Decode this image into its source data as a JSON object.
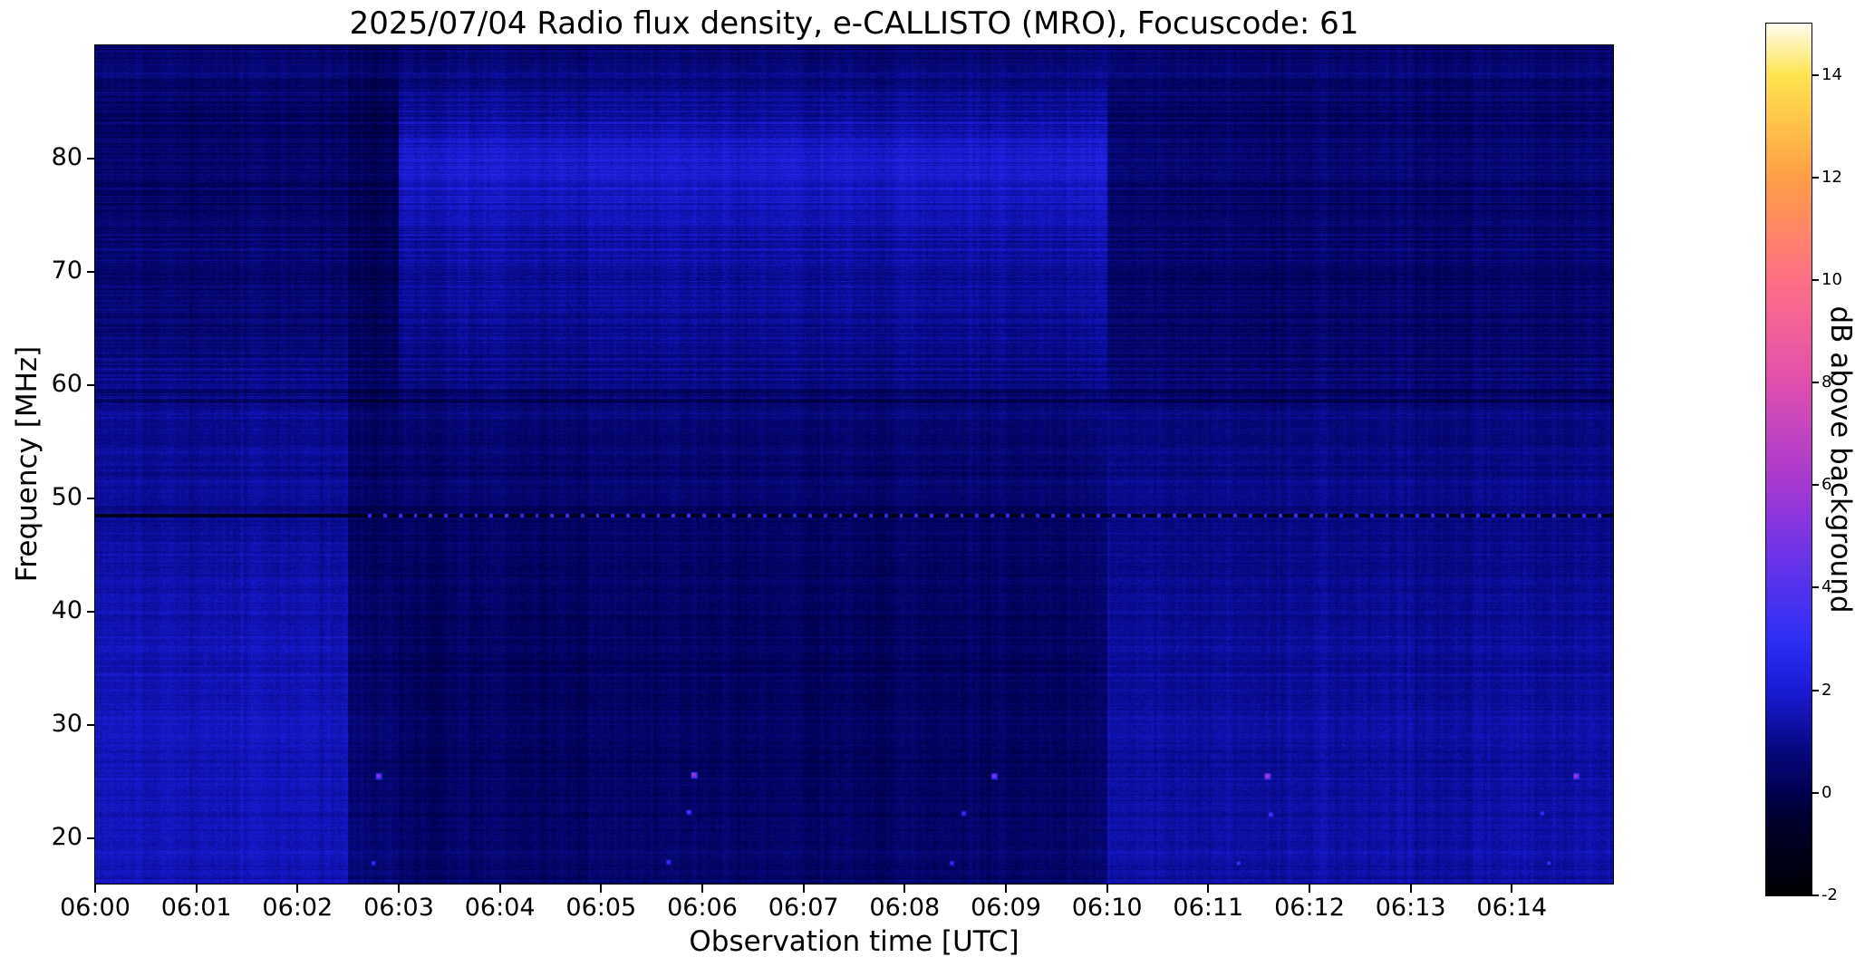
{
  "chart_data": {
    "type": "heatmap",
    "title": "2025/07/04  Radio flux density, e-CALLISTO (MRO), Focuscode: 61",
    "xlabel": "Observation time [UTC]",
    "ylabel": "Frequency [MHz]",
    "date": "2025/07/04",
    "instrument": "e-CALLISTO (MRO)",
    "focuscode": "61",
    "x_ticks": [
      "06:00",
      "06:01",
      "06:02",
      "06:03",
      "06:04",
      "06:05",
      "06:06",
      "06:07",
      "06:08",
      "06:09",
      "06:10",
      "06:11",
      "06:12",
      "06:13",
      "06:14"
    ],
    "y_ticks": [
      20,
      30,
      40,
      50,
      60,
      70,
      80
    ],
    "time_range_seconds": [
      0,
      900
    ],
    "freq_range_mhz": [
      16,
      90
    ],
    "legend_position": "right-colorbar",
    "grid_on": false,
    "colorbar": {
      "label": "dB above background",
      "ticks": [
        -2,
        0,
        2,
        4,
        6,
        8,
        10,
        12,
        14
      ],
      "range": [
        -2,
        15
      ],
      "colormap_stops": [
        {
          "v": -2,
          "c": "#000002"
        },
        {
          "v": -0.5,
          "c": "#000030"
        },
        {
          "v": 0,
          "c": "#00004e"
        },
        {
          "v": 1,
          "c": "#0a0a8c"
        },
        {
          "v": 2,
          "c": "#1b1bd6"
        },
        {
          "v": 3,
          "c": "#2e2ef5"
        },
        {
          "v": 4,
          "c": "#5332ee"
        },
        {
          "v": 5,
          "c": "#7c35e4"
        },
        {
          "v": 6,
          "c": "#a438d2"
        },
        {
          "v": 8,
          "c": "#e04fae"
        },
        {
          "v": 10,
          "c": "#ff6f85"
        },
        {
          "v": 12,
          "c": "#ff9e45"
        },
        {
          "v": 14,
          "c": "#ffe44f"
        },
        {
          "v": 15,
          "c": "#fdfdf0"
        }
      ]
    },
    "grid": {
      "time_bin_seconds": 30,
      "n_time_bins": 30,
      "n_freq_bins": 19,
      "freq_bins_order": "rows top to bottom, 90 MHz down to 16 MHz",
      "values_db": [
        [
          0.4,
          0.4,
          0.4,
          0.4,
          0.4,
          0.1,
          0.5,
          0.5,
          0.5,
          0.5,
          0.5,
          0.5,
          0.5,
          0.5,
          0.5,
          0.5,
          0.5,
          0.5,
          0.5,
          0.5,
          0.4,
          0.4,
          0.4,
          0.4,
          0.4,
          0.4,
          0.4,
          0.4,
          0.4,
          0.4
        ],
        [
          0.3,
          0.3,
          0.3,
          0.3,
          0.3,
          0.0,
          1.2,
          1.2,
          1.2,
          1.2,
          1.2,
          1.2,
          1.2,
          1.2,
          1.2,
          1.2,
          1.2,
          1.2,
          1.2,
          1.2,
          0.4,
          0.4,
          0.4,
          0.4,
          0.4,
          0.4,
          0.4,
          0.4,
          0.4,
          0.4
        ],
        [
          0.3,
          0.3,
          0.3,
          0.3,
          0.3,
          0.0,
          1.9,
          1.9,
          1.9,
          1.9,
          1.9,
          1.9,
          1.9,
          1.9,
          1.9,
          1.9,
          1.9,
          1.9,
          1.9,
          1.9,
          0.5,
          0.5,
          0.5,
          0.5,
          0.5,
          0.5,
          0.5,
          0.5,
          0.5,
          0.5
        ],
        [
          0.4,
          0.4,
          0.4,
          0.4,
          0.4,
          0.1,
          1.8,
          1.8,
          1.8,
          1.8,
          1.8,
          1.8,
          1.8,
          1.8,
          1.8,
          1.8,
          1.8,
          1.8,
          1.8,
          1.8,
          0.5,
          0.5,
          0.5,
          0.5,
          0.5,
          0.5,
          0.5,
          0.5,
          0.5,
          0.5
        ],
        [
          0.5,
          0.5,
          0.5,
          0.5,
          0.5,
          0.1,
          1.3,
          1.3,
          1.3,
          1.3,
          1.3,
          1.3,
          1.3,
          1.3,
          1.3,
          1.3,
          1.3,
          1.3,
          1.3,
          1.3,
          0.5,
          0.5,
          0.5,
          0.5,
          0.5,
          0.5,
          0.5,
          0.5,
          0.5,
          0.5
        ],
        [
          0.5,
          0.5,
          0.5,
          0.5,
          0.5,
          0.1,
          1.2,
          1.2,
          1.2,
          1.2,
          1.2,
          1.2,
          1.2,
          1.2,
          1.2,
          1.2,
          1.2,
          1.2,
          1.2,
          1.2,
          0.4,
          0.4,
          0.4,
          0.4,
          0.4,
          0.4,
          0.4,
          0.4,
          0.4,
          0.4
        ],
        [
          0.6,
          0.6,
          0.6,
          0.6,
          0.6,
          0.2,
          1.1,
          1.1,
          1.1,
          1.1,
          1.1,
          1.1,
          1.1,
          1.1,
          1.1,
          1.1,
          1.1,
          1.1,
          1.1,
          1.1,
          0.5,
          0.5,
          0.5,
          0.5,
          0.5,
          0.5,
          0.5,
          0.5,
          0.5,
          0.5
        ],
        [
          0.8,
          0.8,
          0.8,
          0.8,
          0.8,
          0.2,
          0.8,
          0.8,
          0.8,
          0.8,
          0.8,
          0.8,
          0.8,
          0.8,
          0.8,
          0.8,
          0.8,
          0.8,
          0.8,
          0.8,
          0.5,
          0.5,
          0.5,
          0.5,
          0.5,
          0.5,
          0.5,
          0.5,
          0.5,
          0.5
        ],
        [
          1.0,
          1.0,
          1.0,
          1.0,
          1.0,
          0.3,
          0.6,
          0.6,
          0.6,
          0.6,
          0.6,
          0.6,
          0.6,
          0.6,
          0.6,
          0.6,
          0.6,
          0.6,
          0.6,
          0.6,
          0.8,
          0.8,
          0.8,
          0.8,
          0.8,
          0.8,
          0.8,
          0.8,
          0.8,
          0.8
        ],
        [
          1.1,
          1.1,
          1.1,
          1.1,
          1.1,
          0.3,
          0.5,
          0.5,
          0.5,
          0.5,
          0.5,
          0.5,
          0.5,
          0.5,
          0.5,
          0.5,
          0.5,
          0.5,
          0.5,
          0.5,
          0.9,
          0.9,
          0.9,
          0.9,
          0.9,
          0.9,
          0.9,
          0.9,
          0.9,
          0.9
        ],
        [
          1.0,
          1.0,
          1.0,
          1.0,
          1.0,
          0.2,
          0.4,
          0.4,
          0.4,
          0.4,
          0.4,
          0.4,
          0.4,
          0.4,
          0.4,
          0.4,
          0.4,
          0.4,
          0.4,
          0.4,
          0.9,
          0.9,
          0.9,
          0.9,
          0.9,
          0.9,
          0.9,
          0.9,
          0.9,
          0.9
        ],
        [
          1.3,
          1.3,
          1.3,
          1.3,
          1.3,
          0.3,
          0.4,
          0.4,
          0.4,
          0.4,
          0.4,
          0.4,
          0.4,
          0.4,
          0.4,
          0.4,
          0.4,
          0.4,
          0.4,
          0.4,
          1.0,
          1.0,
          1.0,
          1.0,
          1.0,
          1.0,
          1.0,
          1.0,
          1.0,
          1.0
        ],
        [
          1.4,
          1.4,
          1.4,
          1.4,
          1.4,
          0.4,
          0.35,
          0.35,
          0.35,
          0.35,
          0.35,
          0.35,
          0.35,
          0.35,
          0.35,
          0.35,
          0.35,
          0.35,
          0.35,
          0.35,
          1.1,
          1.1,
          1.1,
          1.1,
          1.1,
          1.1,
          1.1,
          1.1,
          1.1,
          1.1
        ],
        [
          1.5,
          1.5,
          1.5,
          1.5,
          1.5,
          0.4,
          0.3,
          0.3,
          0.3,
          0.3,
          0.3,
          0.3,
          0.3,
          0.3,
          0.3,
          0.3,
          0.3,
          0.3,
          0.3,
          0.3,
          1.2,
          1.2,
          1.2,
          1.2,
          1.2,
          1.2,
          1.2,
          1.2,
          1.2,
          1.2
        ],
        [
          1.5,
          1.5,
          1.5,
          1.5,
          1.5,
          0.4,
          0.3,
          0.3,
          0.3,
          0.3,
          0.3,
          0.3,
          0.3,
          0.3,
          0.3,
          0.3,
          0.3,
          0.3,
          0.3,
          0.3,
          1.2,
          1.2,
          1.2,
          1.2,
          1.2,
          1.2,
          1.2,
          1.2,
          1.2,
          1.2
        ],
        [
          1.6,
          1.6,
          1.6,
          1.6,
          1.6,
          0.5,
          0.3,
          0.3,
          0.3,
          0.3,
          0.3,
          0.3,
          0.3,
          0.3,
          0.3,
          0.3,
          0.3,
          0.3,
          0.3,
          0.3,
          1.3,
          1.3,
          1.3,
          1.3,
          1.3,
          1.3,
          1.3,
          1.3,
          1.3,
          1.3
        ],
        [
          1.6,
          1.6,
          1.6,
          1.6,
          1.6,
          0.5,
          0.35,
          0.35,
          0.35,
          0.35,
          0.35,
          0.35,
          0.35,
          0.35,
          0.35,
          0.35,
          0.35,
          0.35,
          0.35,
          0.35,
          1.3,
          1.3,
          1.3,
          1.3,
          1.3,
          1.3,
          1.3,
          1.3,
          1.3,
          1.3
        ],
        [
          1.5,
          1.5,
          1.5,
          1.5,
          1.5,
          0.5,
          0.35,
          0.35,
          0.35,
          0.35,
          0.35,
          0.35,
          0.35,
          0.35,
          0.35,
          0.35,
          0.35,
          0.35,
          0.35,
          0.35,
          1.3,
          1.3,
          1.3,
          1.3,
          1.3,
          1.3,
          1.3,
          1.3,
          1.3,
          1.3
        ],
        [
          1.5,
          1.5,
          1.5,
          1.5,
          1.5,
          0.6,
          0.4,
          0.4,
          0.4,
          0.4,
          0.4,
          0.4,
          0.4,
          0.4,
          0.4,
          0.4,
          0.4,
          0.4,
          0.4,
          0.4,
          1.3,
          1.3,
          1.3,
          1.3,
          1.3,
          1.3,
          1.3,
          1.3,
          1.3,
          1.3
        ]
      ]
    },
    "features": {
      "interference_line": {
        "freq_mhz": 48.5,
        "base_db": -1.1,
        "dot_db": 3.0,
        "dot_period_s": 9,
        "dots_start_s": 158
      },
      "dark_band_freq_mhz": 58.6,
      "dark_column_time_s": [
        150,
        180
      ],
      "section_boundaries_s": [
        150,
        600
      ],
      "spots": [
        {
          "t": 168,
          "f": 25.5,
          "v": 5.2
        },
        {
          "t": 355,
          "f": 25.6,
          "v": 5.8
        },
        {
          "t": 533,
          "f": 25.5,
          "v": 5.0
        },
        {
          "t": 695,
          "f": 25.5,
          "v": 6.2
        },
        {
          "t": 878,
          "f": 25.5,
          "v": 5.8
        },
        {
          "t": 352,
          "f": 22.3,
          "v": 3.6
        },
        {
          "t": 515,
          "f": 22.2,
          "v": 3.4
        },
        {
          "t": 697,
          "f": 22.1,
          "v": 3.8
        },
        {
          "t": 858,
          "f": 22.2,
          "v": 3.4
        },
        {
          "t": 165,
          "f": 17.8,
          "v": 3.2
        },
        {
          "t": 340,
          "f": 17.9,
          "v": 3.4
        },
        {
          "t": 508,
          "f": 17.8,
          "v": 3.2
        },
        {
          "t": 678,
          "f": 17.8,
          "v": 3.3
        },
        {
          "t": 862,
          "f": 17.8,
          "v": 3.2
        }
      ]
    }
  },
  "colors": {
    "background": "#ffffff",
    "text": "#000000",
    "axis": "#000000"
  }
}
